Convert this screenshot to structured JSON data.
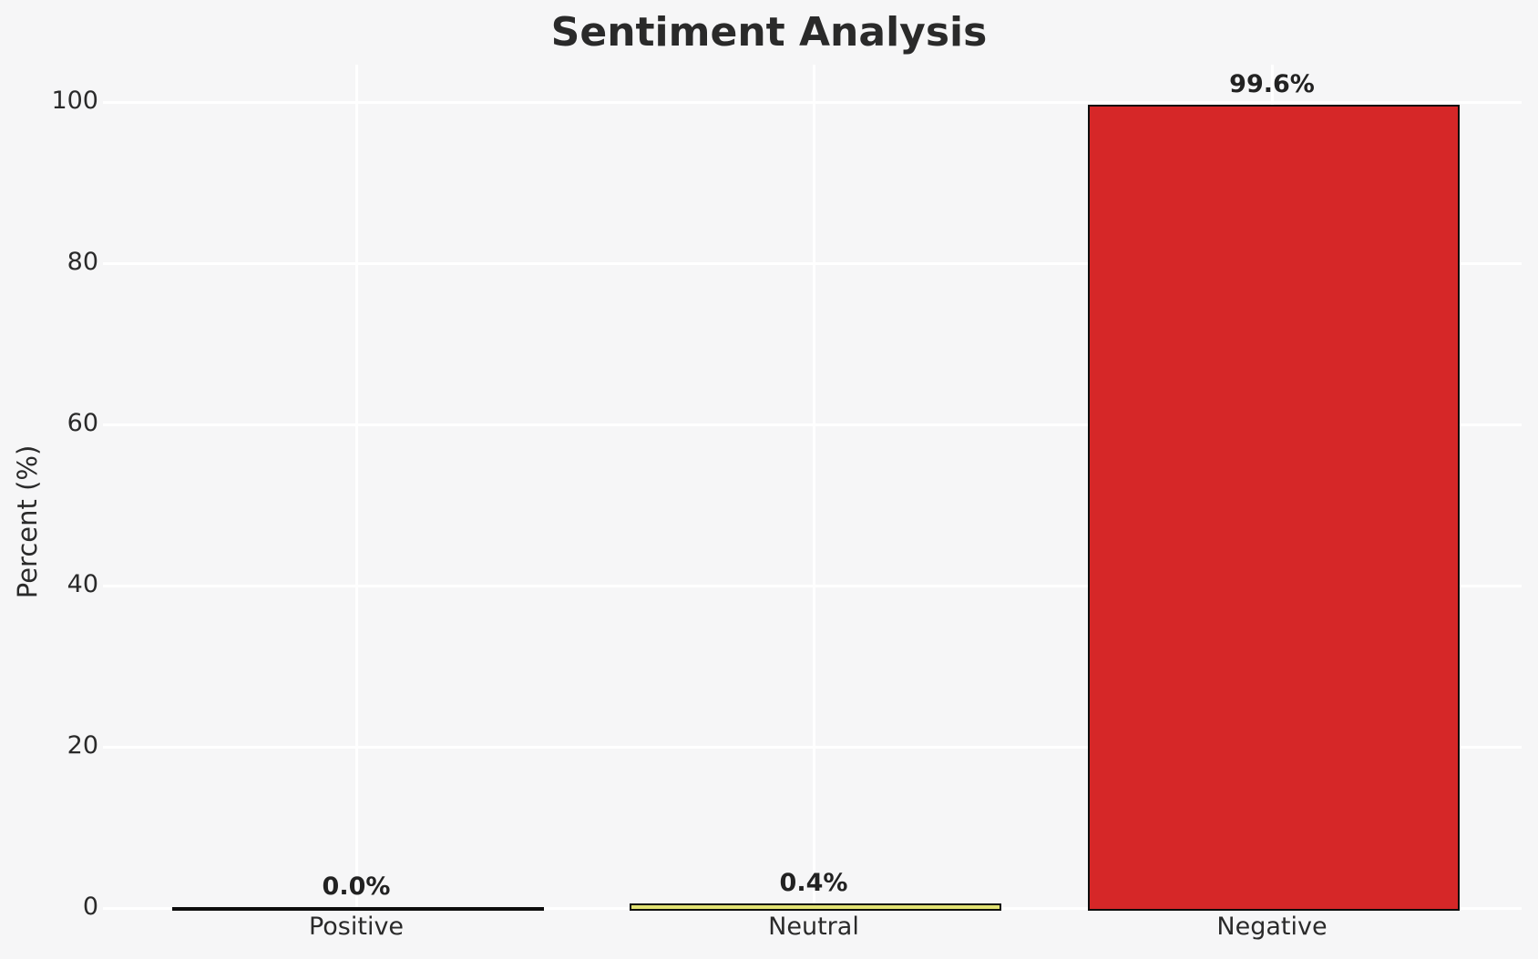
{
  "page": {
    "background_color": "#f6f6f7",
    "gridline_color": "#ffffff",
    "text_color": "#2a2a2a"
  },
  "chart_data": {
    "type": "bar",
    "title": "Sentiment Analysis",
    "xlabel": "",
    "ylabel": "Percent (%)",
    "categories": [
      "Positive",
      "Neutral",
      "Negative"
    ],
    "values": [
      0.0,
      0.4,
      99.6
    ],
    "bar_value_labels": [
      "0.0%",
      "0.4%",
      "99.6%"
    ],
    "bar_colors": [
      "#2ca02c",
      "#e2e273",
      "#d62728"
    ],
    "bar_edge_color": "#0d0d0d",
    "ytick_labels": [
      "0",
      "20",
      "40",
      "60",
      "80",
      "100"
    ],
    "ytick_values": [
      0,
      20,
      40,
      60,
      80,
      100
    ],
    "ylim": [
      0,
      104.6
    ],
    "grid": "on",
    "grid_style": "white gridlines on light gray background",
    "legend_position": "none"
  }
}
